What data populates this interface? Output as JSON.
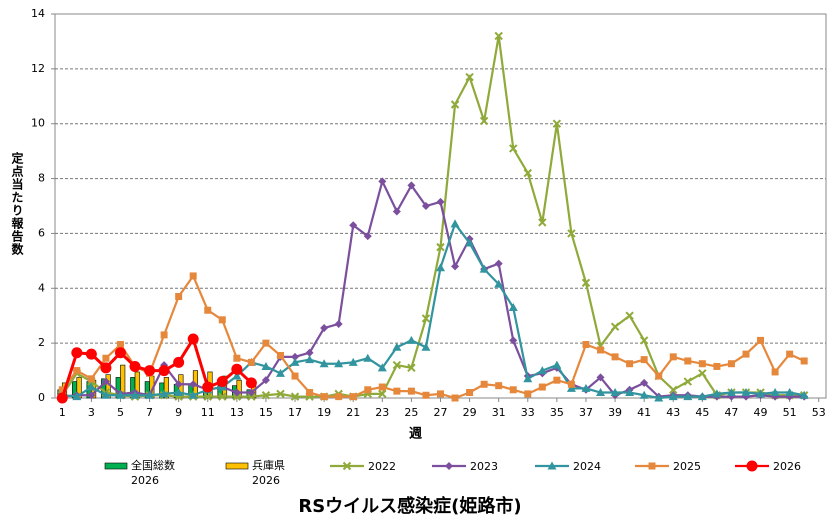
{
  "chart_data": {
    "type": "line",
    "title": "RSウイルス感染症(姫路市)",
    "x_label": "週",
    "y_label": "定点当たり報告数",
    "x": [
      1,
      2,
      3,
      4,
      5,
      6,
      7,
      8,
      9,
      10,
      11,
      12,
      13,
      14,
      15,
      16,
      17,
      18,
      19,
      20,
      21,
      22,
      23,
      24,
      25,
      26,
      27,
      28,
      29,
      30,
      31,
      32,
      33,
      34,
      35,
      36,
      37,
      38,
      39,
      40,
      41,
      42,
      43,
      44,
      45,
      46,
      47,
      48,
      49,
      50,
      51,
      52
    ],
    "xlim": [
      0.5,
      53.5
    ],
    "xticks": [
      1,
      3,
      5,
      7,
      9,
      11,
      13,
      15,
      17,
      19,
      21,
      23,
      25,
      27,
      29,
      31,
      33,
      35,
      37,
      39,
      41,
      43,
      45,
      47,
      49,
      51,
      53
    ],
    "ylim": [
      0,
      14
    ],
    "yticks": [
      0,
      2,
      4,
      6,
      8,
      10,
      12,
      14
    ],
    "grid": true,
    "series": [
      {
        "name": "全国総数\n2026",
        "type": "bar",
        "color": "#00b050",
        "values": [
          0.3,
          0.6,
          0.6,
          0.7,
          0.75,
          0.75,
          0.6,
          0.55,
          0.5,
          0.5,
          0.5,
          0.45,
          0.45,
          0.3,
          null,
          null,
          null,
          null,
          null,
          null,
          null,
          null,
          null,
          null,
          null,
          null,
          null,
          null,
          null,
          null,
          null,
          null,
          null,
          null,
          null,
          null,
          null,
          null,
          null,
          null,
          null,
          null,
          null,
          null,
          null,
          null,
          null,
          null,
          null,
          null,
          null,
          null
        ]
      },
      {
        "name": "兵庫県\n2026",
        "type": "bar",
        "color": "#ffc000",
        "values": [
          0.55,
          0.75,
          0.65,
          0.85,
          1.2,
          0.95,
          0.8,
          0.75,
          0.85,
          1.0,
          0.95,
          0.8,
          0.65,
          0.45,
          null,
          null,
          null,
          null,
          null,
          null,
          null,
          null,
          null,
          null,
          null,
          null,
          null,
          null,
          null,
          null,
          null,
          null,
          null,
          null,
          null,
          null,
          null,
          null,
          null,
          null,
          null,
          null,
          null,
          null,
          null,
          null,
          null,
          null,
          null,
          null,
          null,
          null
        ]
      },
      {
        "name": "2022",
        "type": "line",
        "marker": "x",
        "color": "#8faa3a",
        "values": [
          0.1,
          0.9,
          0.6,
          0.2,
          0.1,
          0.05,
          0.1,
          0.1,
          0.05,
          0.05,
          0.05,
          0.05,
          0.05,
          0.05,
          0.1,
          0.15,
          0.05,
          0.05,
          0.05,
          0.15,
          0.05,
          0.15,
          0.15,
          1.2,
          1.1,
          2.9,
          5.5,
          10.7,
          11.7,
          10.1,
          13.2,
          9.1,
          8.2,
          6.4,
          10.0,
          6.0,
          4.2,
          1.9,
          2.6,
          3.0,
          2.1,
          0.8,
          0.3,
          0.6,
          0.9,
          0.1,
          0.2,
          0.2,
          0.2,
          0.1,
          0.1,
          0.1
        ]
      },
      {
        "name": "2023",
        "type": "line",
        "marker": "diamond",
        "color": "#7b4f9d",
        "values": [
          0.05,
          0.1,
          0.1,
          0.6,
          0.15,
          0.2,
          0.1,
          1.2,
          0.5,
          0.5,
          0.3,
          0.4,
          0.2,
          0.2,
          0.65,
          1.5,
          1.5,
          1.65,
          2.55,
          2.7,
          6.3,
          5.9,
          7.9,
          6.8,
          7.75,
          7.0,
          7.15,
          4.8,
          5.8,
          4.7,
          4.9,
          2.1,
          0.8,
          0.9,
          1.1,
          0.5,
          0.3,
          0.75,
          0.1,
          0.3,
          0.55,
          0.05,
          0.1,
          0.1,
          0.05,
          0.05,
          0.05,
          0.05,
          0.1,
          0.05,
          0.05,
          0.05
        ]
      },
      {
        "name": "2024",
        "type": "line",
        "marker": "triangle",
        "color": "#31949e",
        "values": [
          0.1,
          0.05,
          0.4,
          0.1,
          0.1,
          0.1,
          0.1,
          0.15,
          0.2,
          0.1,
          0.3,
          0.4,
          0.8,
          1.3,
          1.15,
          0.9,
          1.3,
          1.4,
          1.25,
          1.25,
          1.3,
          1.45,
          1.1,
          1.85,
          2.1,
          1.85,
          4.75,
          6.35,
          5.65,
          4.7,
          4.15,
          3.3,
          0.7,
          1.0,
          1.2,
          0.35,
          0.35,
          0.2,
          0.2,
          0.2,
          0.1,
          0.0,
          0.05,
          0.05,
          0.05,
          0.15,
          0.2,
          0.2,
          0.15,
          0.2,
          0.2,
          0.1
        ]
      },
      {
        "name": "2025",
        "type": "line",
        "marker": "square",
        "color": "#e6883c",
        "values": [
          0.3,
          1.0,
          0.7,
          1.45,
          1.95,
          1.15,
          0.9,
          2.3,
          3.7,
          4.45,
          3.2,
          2.85,
          1.45,
          1.3,
          2.0,
          1.55,
          0.8,
          0.2,
          0.05,
          0.05,
          0.05,
          0.3,
          0.4,
          0.25,
          0.25,
          0.1,
          0.15,
          0.0,
          0.2,
          0.5,
          0.45,
          0.3,
          0.15,
          0.4,
          0.65,
          0.5,
          1.95,
          1.75,
          1.5,
          1.25,
          1.4,
          0.8,
          1.5,
          1.35,
          1.25,
          1.15,
          1.25,
          1.6,
          2.1,
          0.95,
          1.6,
          1.35
        ]
      },
      {
        "name": "2026",
        "type": "line",
        "marker": "circle",
        "color": "#ff0000",
        "values": [
          0.0,
          1.65,
          1.6,
          1.1,
          1.65,
          1.15,
          1.0,
          1.0,
          1.3,
          2.15,
          0.4,
          0.6,
          1.05,
          0.55,
          null,
          null,
          null,
          null,
          null,
          null,
          null,
          null,
          null,
          null,
          null,
          null,
          null,
          null,
          null,
          null,
          null,
          null,
          null,
          null,
          null,
          null,
          null,
          null,
          null,
          null,
          null,
          null,
          null,
          null,
          null,
          null,
          null,
          null,
          null,
          null,
          null,
          null
        ]
      }
    ]
  }
}
